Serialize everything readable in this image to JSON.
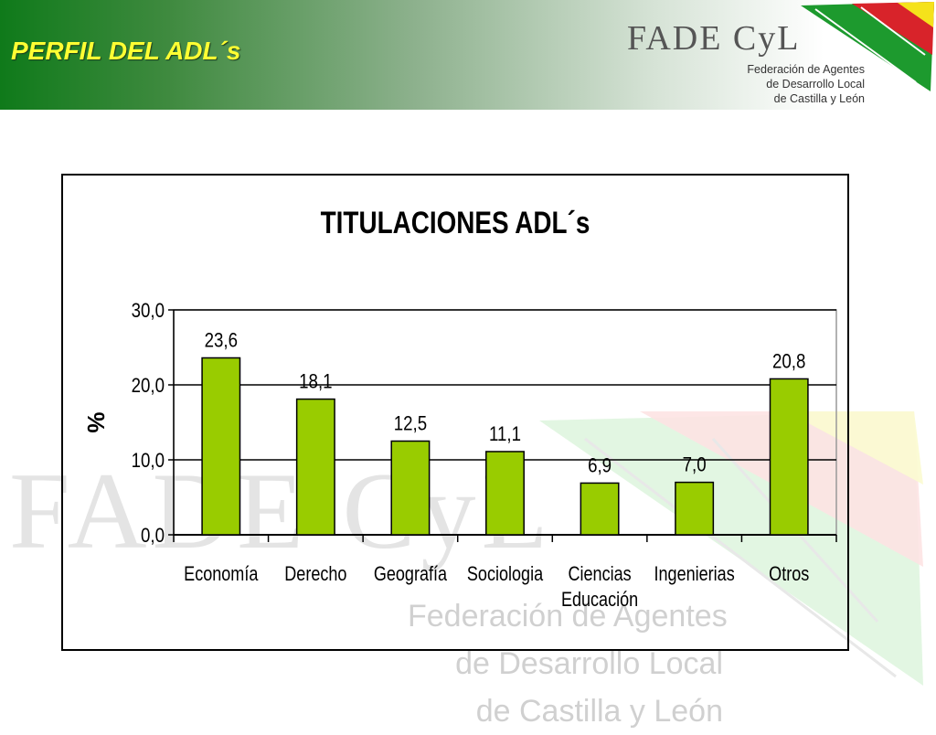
{
  "header": {
    "title": "PERFIL DEL ADL´s",
    "logo": {
      "wordmark": "FADE CyL",
      "sub_lines": [
        "Federación de Agentes",
        "de Desarrollo Local",
        "de Castilla y León"
      ]
    }
  },
  "watermark": {
    "wordmark": "FADE CyL",
    "sub_lines": [
      "Federación de Agentes",
      "de Desarrollo Local",
      "de Castilla y León"
    ]
  },
  "colors": {
    "bar_fill": "#99cc00",
    "header_title": "#ffff33",
    "header_green": "#0f7a1a"
  },
  "chart_data": {
    "type": "bar",
    "title": "TITULACIONES ADL´s",
    "xlabel": "",
    "ylabel": "%",
    "ylim": [
      0,
      30
    ],
    "yticks": [
      "0,0",
      "10,0",
      "20,0",
      "30,0"
    ],
    "grid": true,
    "categories": [
      "Economía",
      "Derecho",
      "Geografía",
      "Sociologia",
      "Ciencias Educación",
      "Ingenierias",
      "Otros"
    ],
    "category_lines": [
      [
        "Economía"
      ],
      [
        "Derecho"
      ],
      [
        "Geografía"
      ],
      [
        "Sociologia"
      ],
      [
        "Ciencias",
        "Educación"
      ],
      [
        "Ingenierias"
      ],
      [
        "Otros"
      ]
    ],
    "values": [
      23.6,
      18.1,
      12.5,
      11.1,
      6.9,
      7.0,
      20.8
    ],
    "value_labels": [
      "23,6",
      "18,1",
      "12,5",
      "11,1",
      "6,9",
      "7,0",
      "20,8"
    ]
  }
}
